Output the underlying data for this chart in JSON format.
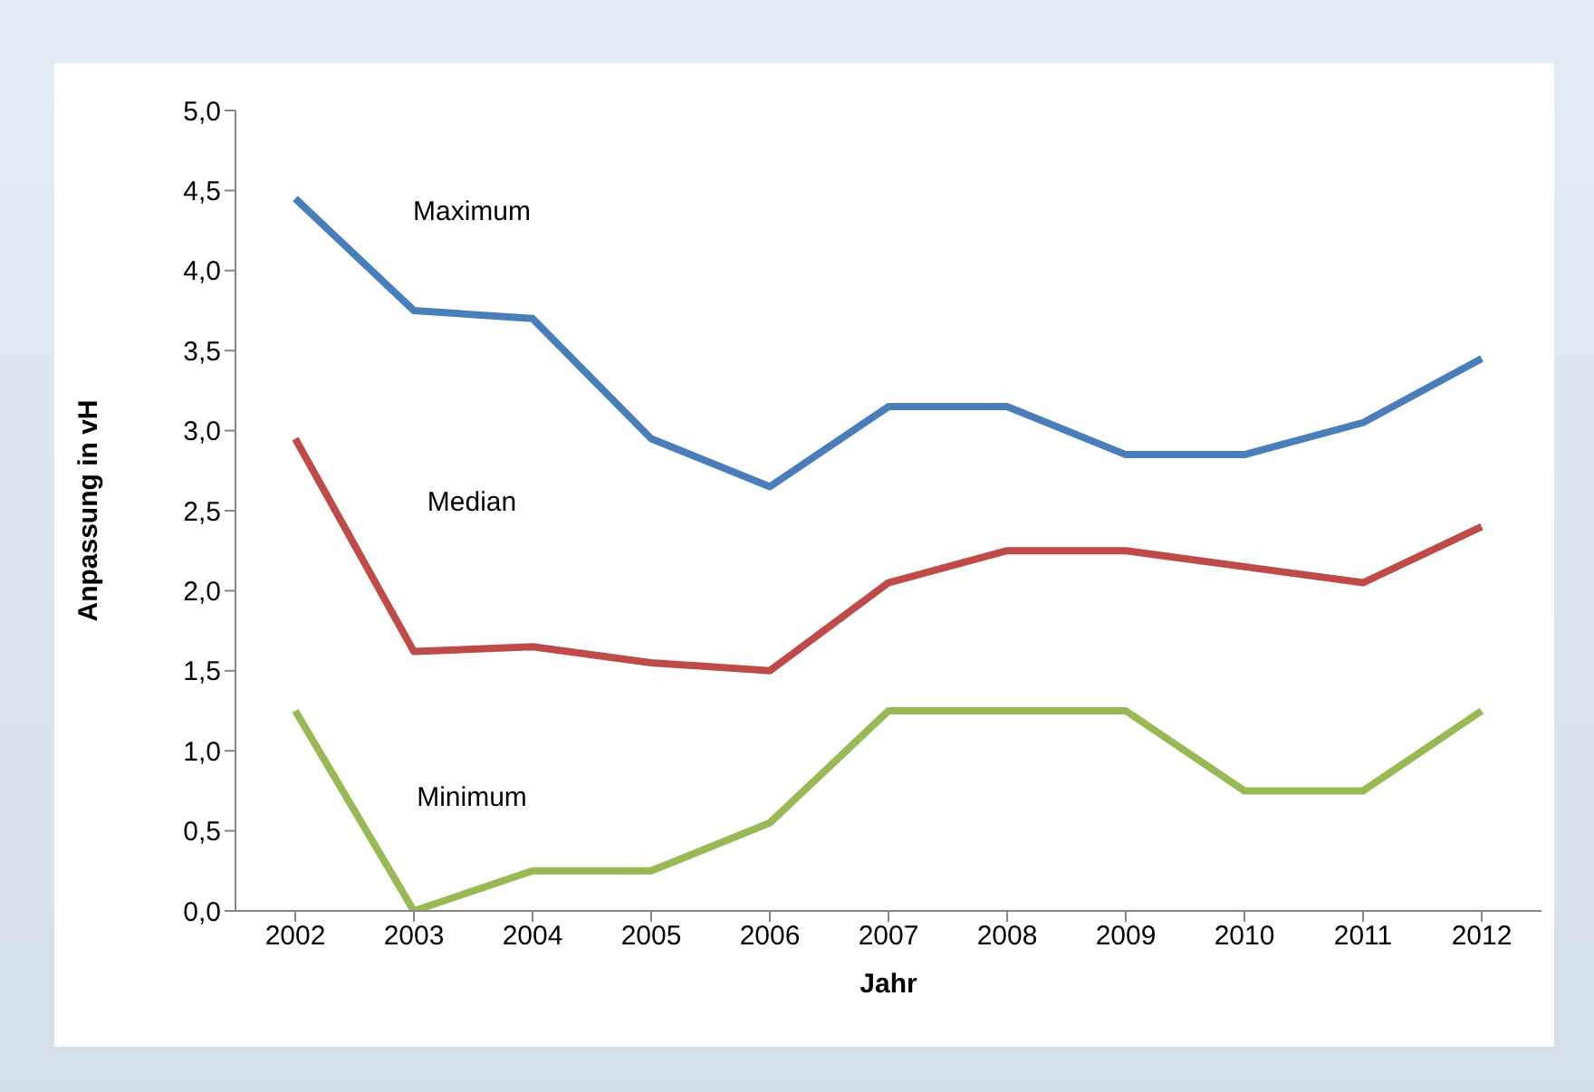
{
  "chart_data": {
    "type": "line",
    "xlabel": "Jahr",
    "ylabel": "Anpassung in vH",
    "categories": [
      "2002",
      "2003",
      "2004",
      "2005",
      "2006",
      "2007",
      "2008",
      "2009",
      "2010",
      "2011",
      "2012"
    ],
    "series": [
      {
        "name": "Maximum",
        "color": "#4a7ebb",
        "values": [
          4.45,
          3.75,
          3.7,
          2.95,
          2.65,
          3.15,
          3.15,
          2.85,
          2.85,
          3.05,
          3.45
        ]
      },
      {
        "name": "Median",
        "color": "#be4b48",
        "values": [
          2.95,
          1.62,
          1.65,
          1.55,
          1.5,
          2.05,
          2.25,
          2.25,
          2.15,
          2.05,
          2.4
        ]
      },
      {
        "name": "Minimum",
        "color": "#98b954",
        "values": [
          1.25,
          0,
          0.25,
          0.25,
          0.55,
          1.25,
          1.25,
          1.25,
          0.75,
          0.75,
          1.25
        ]
      }
    ],
    "ylim": [
      0,
      5
    ],
    "yticks": [
      {
        "value": 0,
        "label": "0,0"
      },
      {
        "value": 0.5,
        "label": "0,5"
      },
      {
        "value": 1,
        "label": "1,0"
      },
      {
        "value": 1.5,
        "label": "1,5"
      },
      {
        "value": 2,
        "label": "2,0"
      },
      {
        "value": 2.5,
        "label": "2,5"
      },
      {
        "value": 3,
        "label": "3,0"
      },
      {
        "value": 3.5,
        "label": "3,5"
      },
      {
        "value": 4,
        "label": "4,0"
      },
      {
        "value": 4.5,
        "label": "4,5"
      },
      {
        "value": 5,
        "label": "5,0"
      }
    ],
    "grid": false,
    "legend": false,
    "marker": "none",
    "line_style": "solid"
  }
}
